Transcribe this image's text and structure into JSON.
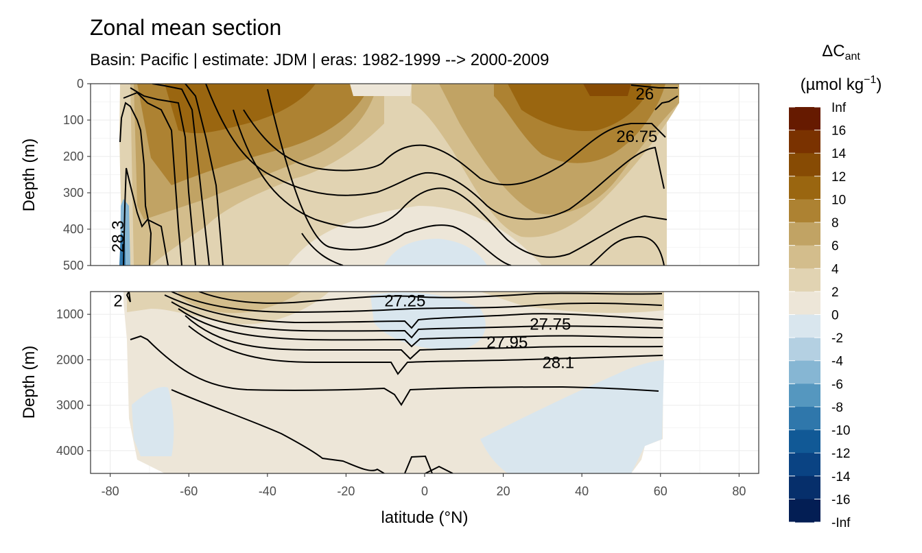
{
  "chart_data": {
    "type": "contour",
    "title": "Zonal mean section",
    "subtitle": "Basin: Pacific | estimate: JDM  | eras: 1982-1999 --> 2000-2009",
    "xlabel": "latitude (°N)",
    "ylabel": "Depth (m)",
    "xlim": [
      -85,
      85
    ],
    "x_ticks": [
      -80,
      -60,
      -40,
      -20,
      0,
      20,
      40,
      60,
      80
    ],
    "grid": true,
    "panels": [
      {
        "name": "upper",
        "ylim": [
          500,
          0
        ],
        "y_ticks": [
          0,
          100,
          200,
          300,
          400,
          500
        ]
      },
      {
        "name": "lower",
        "ylim": [
          4500,
          500
        ],
        "y_ticks": [
          1000,
          2000,
          3000,
          4000
        ]
      }
    ],
    "legend": {
      "title_main": "ΔC",
      "title_sub": "ant",
      "unit_main": "(µmol kg",
      "unit_sup": "−1",
      "unit_close": ")",
      "placement": "right",
      "labels": [
        "Inf",
        "16",
        "14",
        "12",
        "10",
        "8",
        "6",
        "4",
        "2",
        "0",
        "-2",
        "-4",
        "-6",
        "-8",
        "-10",
        "-12",
        "-14",
        "-16",
        "-Inf"
      ],
      "colors": [
        "#661a00",
        "#7a3200",
        "#874b04",
        "#9a6610",
        "#ad8232",
        "#c1a364",
        "#d3bd8c",
        "#e1d3b2",
        "#ede6d8",
        "#d9e6ee",
        "#b4d0e2",
        "#86b6d3",
        "#5597bf",
        "#2f77ab",
        "#115996",
        "#0a4383",
        "#062f6b",
        "#031e54"
      ]
    },
    "isopycnal_labels": [
      {
        "text": "26",
        "lat": 56,
        "depth": 28,
        "panel": "upper"
      },
      {
        "text": "26.75",
        "lat": 54,
        "depth": 145,
        "panel": "upper"
      },
      {
        "text": "28.3",
        "lat": -78,
        "depth": 420,
        "panel": "upper"
      },
      {
        "text": "2",
        "lat": -78,
        "depth": 700,
        "panel": "lower"
      },
      {
        "text": "27.25",
        "lat": -5,
        "depth": 700,
        "panel": "lower"
      },
      {
        "text": "27.75",
        "lat": 32,
        "depth": 1220,
        "panel": "lower"
      },
      {
        "text": "27.95",
        "lat": 21,
        "depth": 1620,
        "panel": "lower"
      },
      {
        "text": "28.1",
        "lat": 34,
        "depth": 2060,
        "panel": "lower"
      }
    ]
  }
}
